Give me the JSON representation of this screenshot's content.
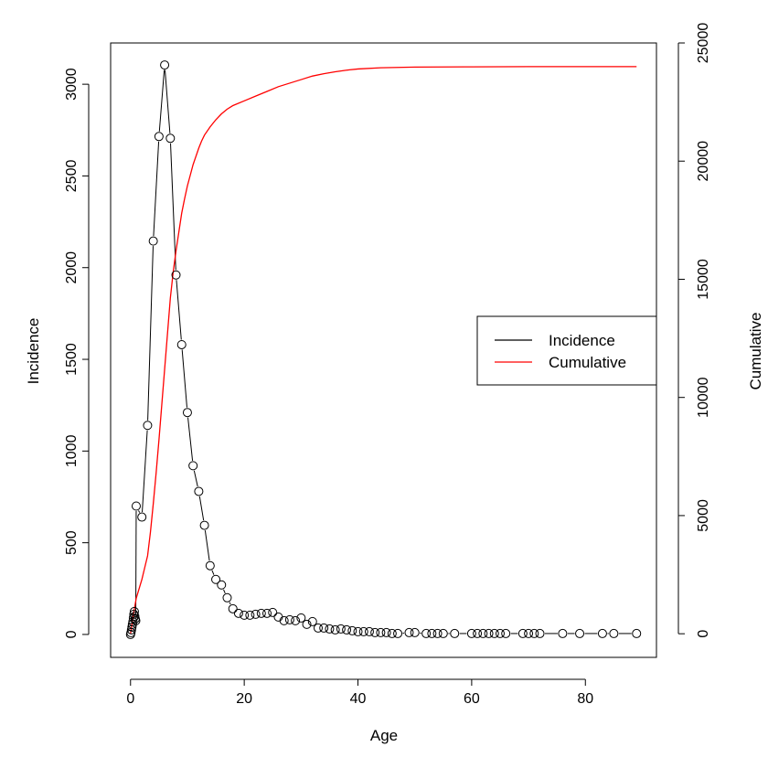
{
  "chart_data": {
    "type": "line",
    "xlabel": "Age",
    "ylabel": "Incidence",
    "y2label": "Cumulative",
    "xlim": [
      -3.5,
      92.5
    ],
    "ylim": [
      -125,
      3225
    ],
    "y2lim": [
      -1000,
      25000
    ],
    "xticks": [
      0,
      20,
      40,
      60,
      80
    ],
    "yticks": [
      0,
      500,
      1000,
      1500,
      2000,
      2500,
      3000
    ],
    "y2ticks": [
      0,
      5000,
      10000,
      15000,
      20000,
      25000
    ],
    "legend": {
      "position": "right",
      "entries": [
        "Incidence",
        "Cumulative"
      ]
    },
    "series": [
      {
        "name": "Incidence",
        "color": "#000000",
        "style": "line+points",
        "x": [
          0,
          0.08,
          0.17,
          0.25,
          0.33,
          0.42,
          0.5,
          0.58,
          0.67,
          0.75,
          0.83,
          0.92,
          1,
          2,
          3,
          4,
          5,
          6,
          7,
          8,
          9,
          10,
          11,
          12,
          13,
          14,
          15,
          16,
          17,
          18,
          19,
          20,
          21,
          22,
          23,
          24,
          25,
          26,
          27,
          28,
          29,
          30,
          31,
          32,
          33,
          34,
          35,
          36,
          37,
          38,
          39,
          40,
          41,
          42,
          43,
          44,
          45,
          46,
          47,
          49,
          50,
          52,
          53,
          54,
          55,
          57,
          60,
          61,
          62,
          63,
          64,
          65,
          66,
          69,
          70,
          71,
          72,
          76,
          79,
          83,
          85,
          89
        ],
        "y": [
          0,
          10,
          25,
          40,
          55,
          70,
          90,
          110,
          125,
          100,
          85,
          75,
          700,
          640,
          1140,
          2145,
          2715,
          3105,
          2705,
          1960,
          1580,
          1210,
          920,
          780,
          595,
          375,
          300,
          270,
          200,
          140,
          115,
          105,
          105,
          110,
          115,
          115,
          120,
          95,
          75,
          80,
          75,
          90,
          55,
          70,
          35,
          35,
          30,
          25,
          30,
          25,
          20,
          15,
          15,
          15,
          10,
          10,
          10,
          5,
          5,
          10,
          10,
          5,
          5,
          5,
          5,
          5,
          5,
          5,
          5,
          5,
          5,
          5,
          5,
          5,
          5,
          5,
          5,
          5,
          5,
          5,
          5,
          5
        ]
      },
      {
        "name": "Cumulative",
        "color": "#ff0000",
        "style": "line",
        "axis": "right",
        "x": [
          0,
          0.5,
          1,
          1.5,
          2,
          2.5,
          3,
          3.5,
          4,
          4.5,
          5,
          5.5,
          6,
          6.5,
          7,
          7.5,
          8,
          8.5,
          9,
          9.5,
          10,
          10.5,
          11,
          11.5,
          12,
          12.5,
          13,
          14,
          15,
          16,
          17,
          18,
          20,
          22,
          24,
          26,
          28,
          30,
          32,
          34,
          36,
          38,
          40,
          44,
          50,
          60,
          70,
          80,
          89
        ],
        "y": [
          0,
          800,
          1500,
          1900,
          2300,
          2800,
          3300,
          4300,
          5500,
          6800,
          8200,
          9700,
          11200,
          12700,
          14200,
          15300,
          16200,
          17000,
          17800,
          18400,
          18950,
          19400,
          19850,
          20200,
          20550,
          20850,
          21100,
          21450,
          21750,
          22000,
          22200,
          22350,
          22550,
          22750,
          22950,
          23150,
          23300,
          23450,
          23600,
          23700,
          23780,
          23850,
          23900,
          23950,
          23980,
          23990,
          24000,
          24000,
          24000
        ]
      }
    ]
  }
}
